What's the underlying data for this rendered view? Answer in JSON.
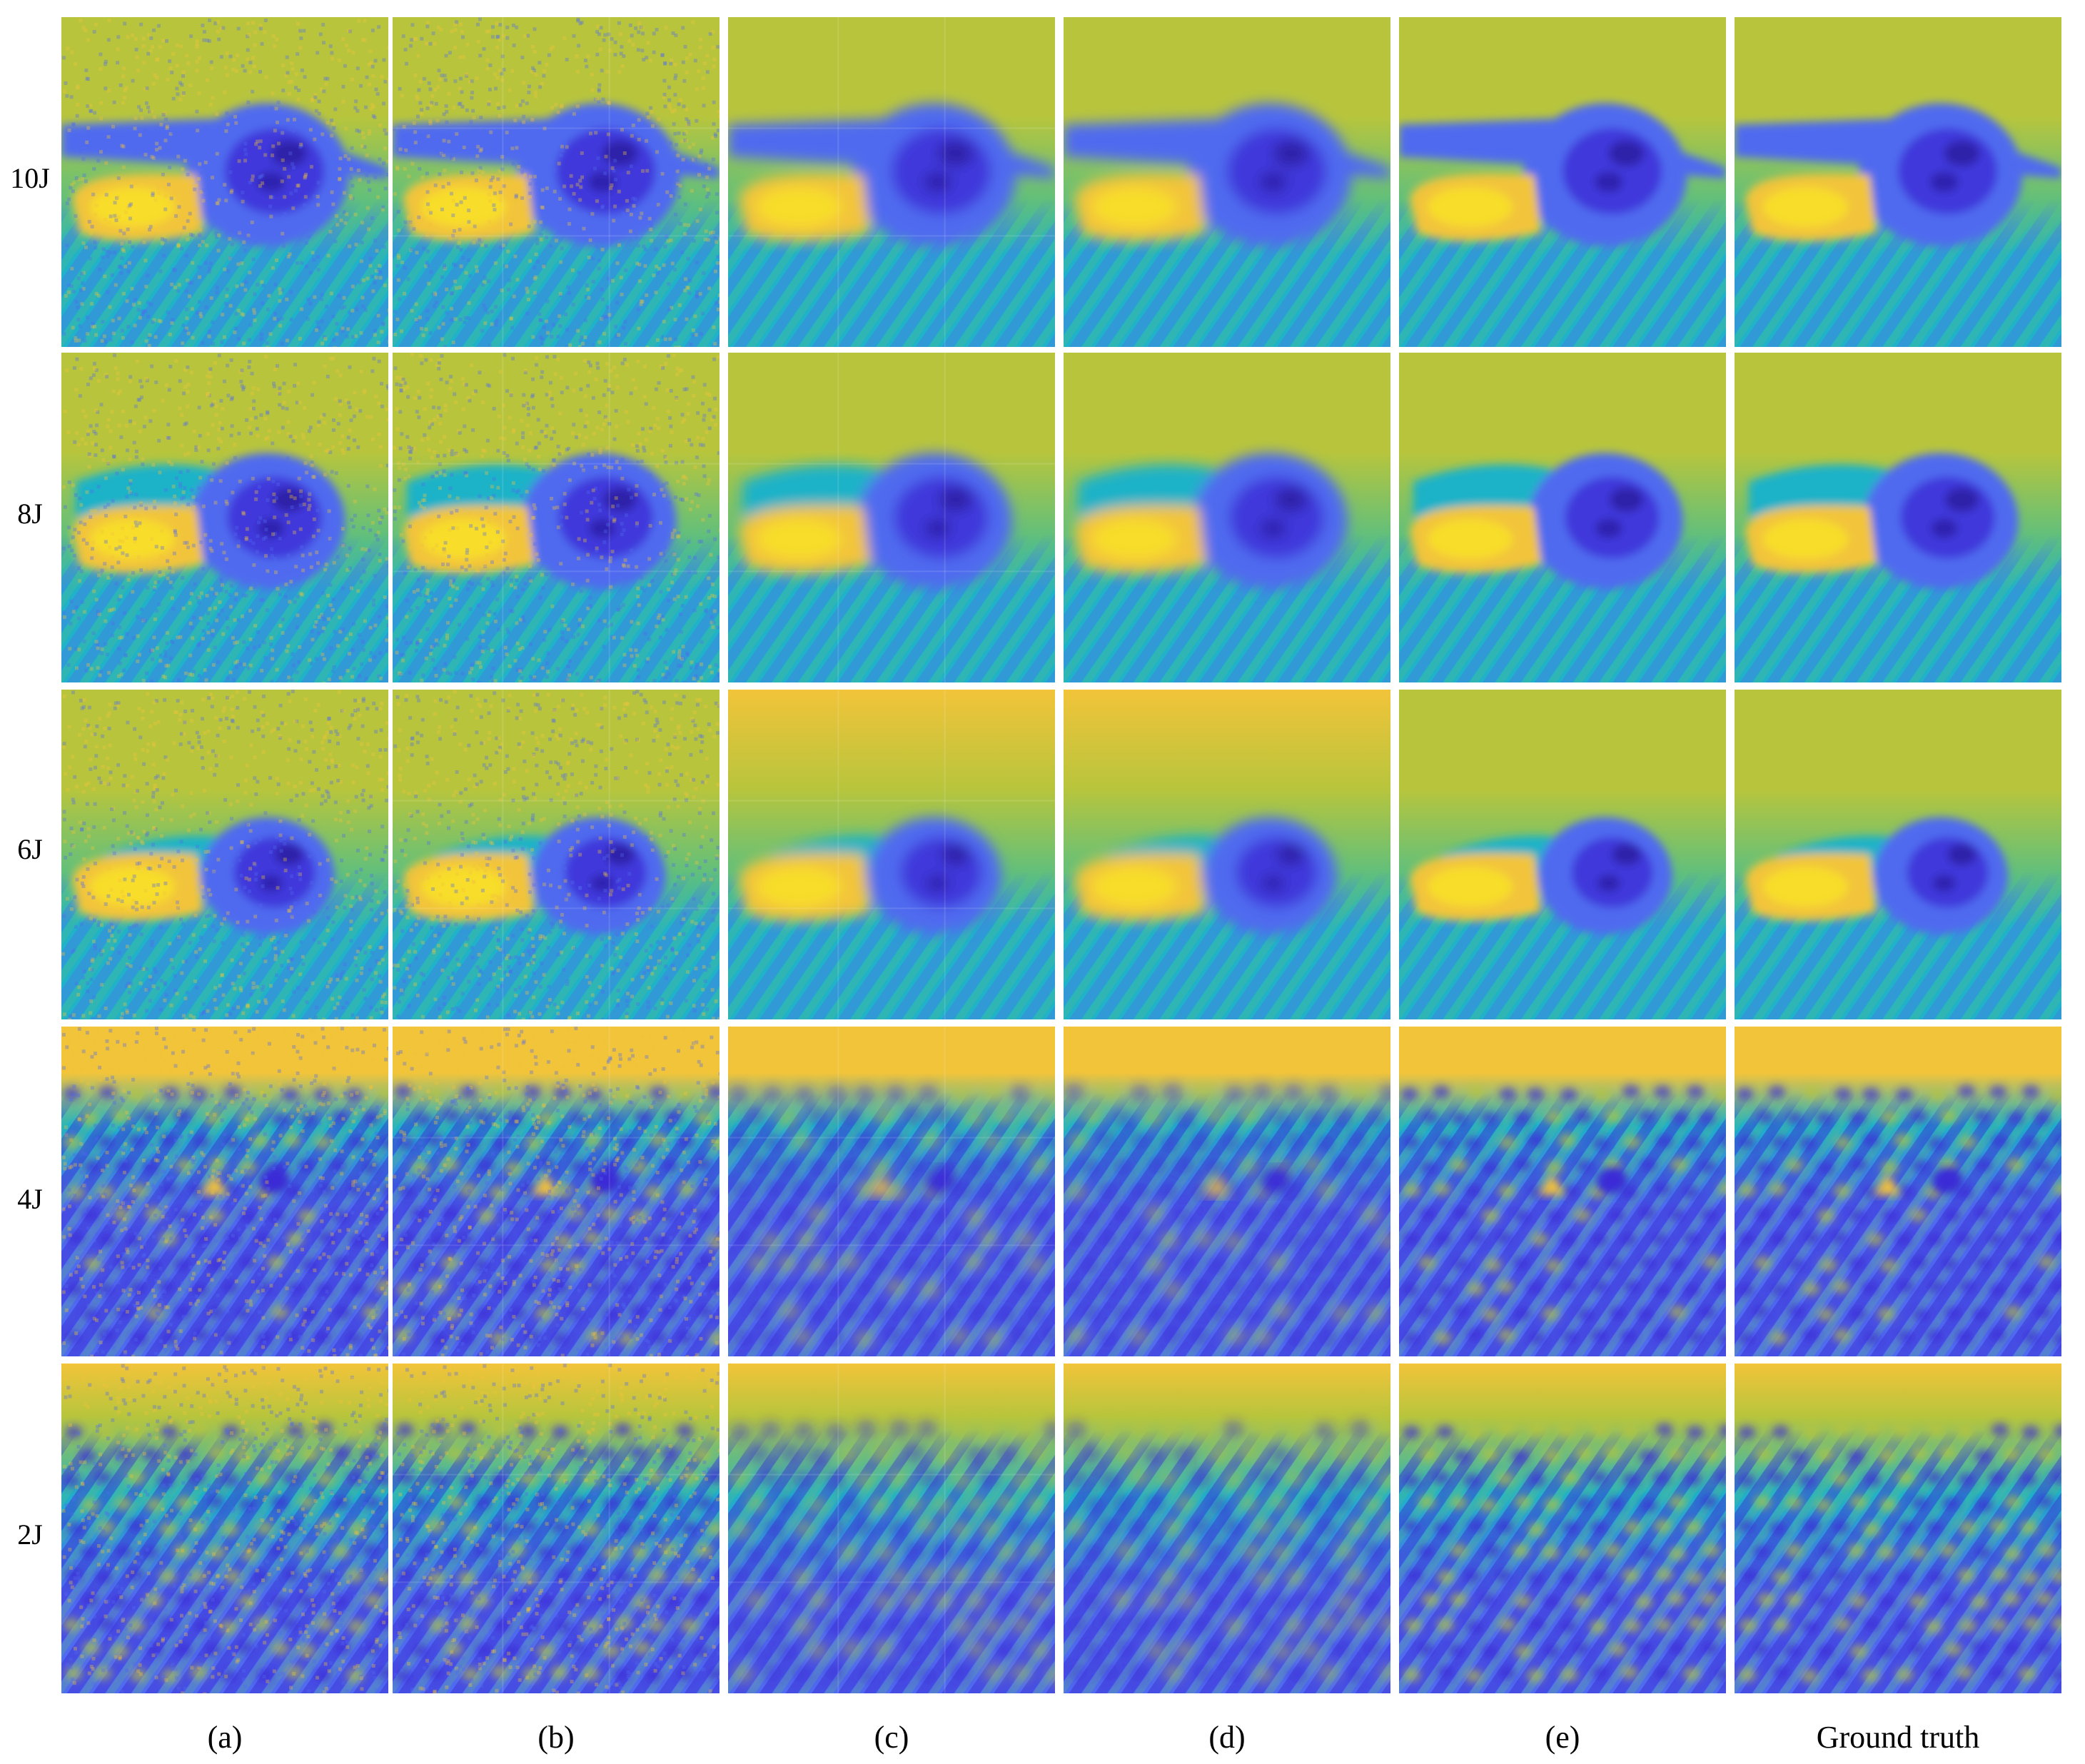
{
  "rows": [
    {
      "label": "10J",
      "scene": "defect",
      "phase": 0
    },
    {
      "label": "8J",
      "scene": "defect",
      "phase": 1
    },
    {
      "label": "6J",
      "scene": "defect",
      "phase": 2
    },
    {
      "label": "4J",
      "scene": "pattern",
      "phase": 0
    },
    {
      "label": "2J",
      "scene": "pattern",
      "phase": 1
    }
  ],
  "columns": [
    {
      "label": "(a)",
      "quality": "noisy"
    },
    {
      "label": "(b)",
      "quality": "noisy-blocky"
    },
    {
      "label": "(c)",
      "quality": "smooth-blocky"
    },
    {
      "label": "(d)",
      "quality": "smooth"
    },
    {
      "label": "(e)",
      "quality": "clean"
    },
    {
      "label": "Ground truth",
      "quality": "clean"
    }
  ],
  "colormap": {
    "dark_blue": "#3b2bd6",
    "blue": "#4f6bef",
    "cyan": "#1fb2c8",
    "green": "#63c07a",
    "yellow_green": "#b8c53c",
    "yellow": "#f2c43a",
    "bright_yellow": "#f9e227"
  }
}
